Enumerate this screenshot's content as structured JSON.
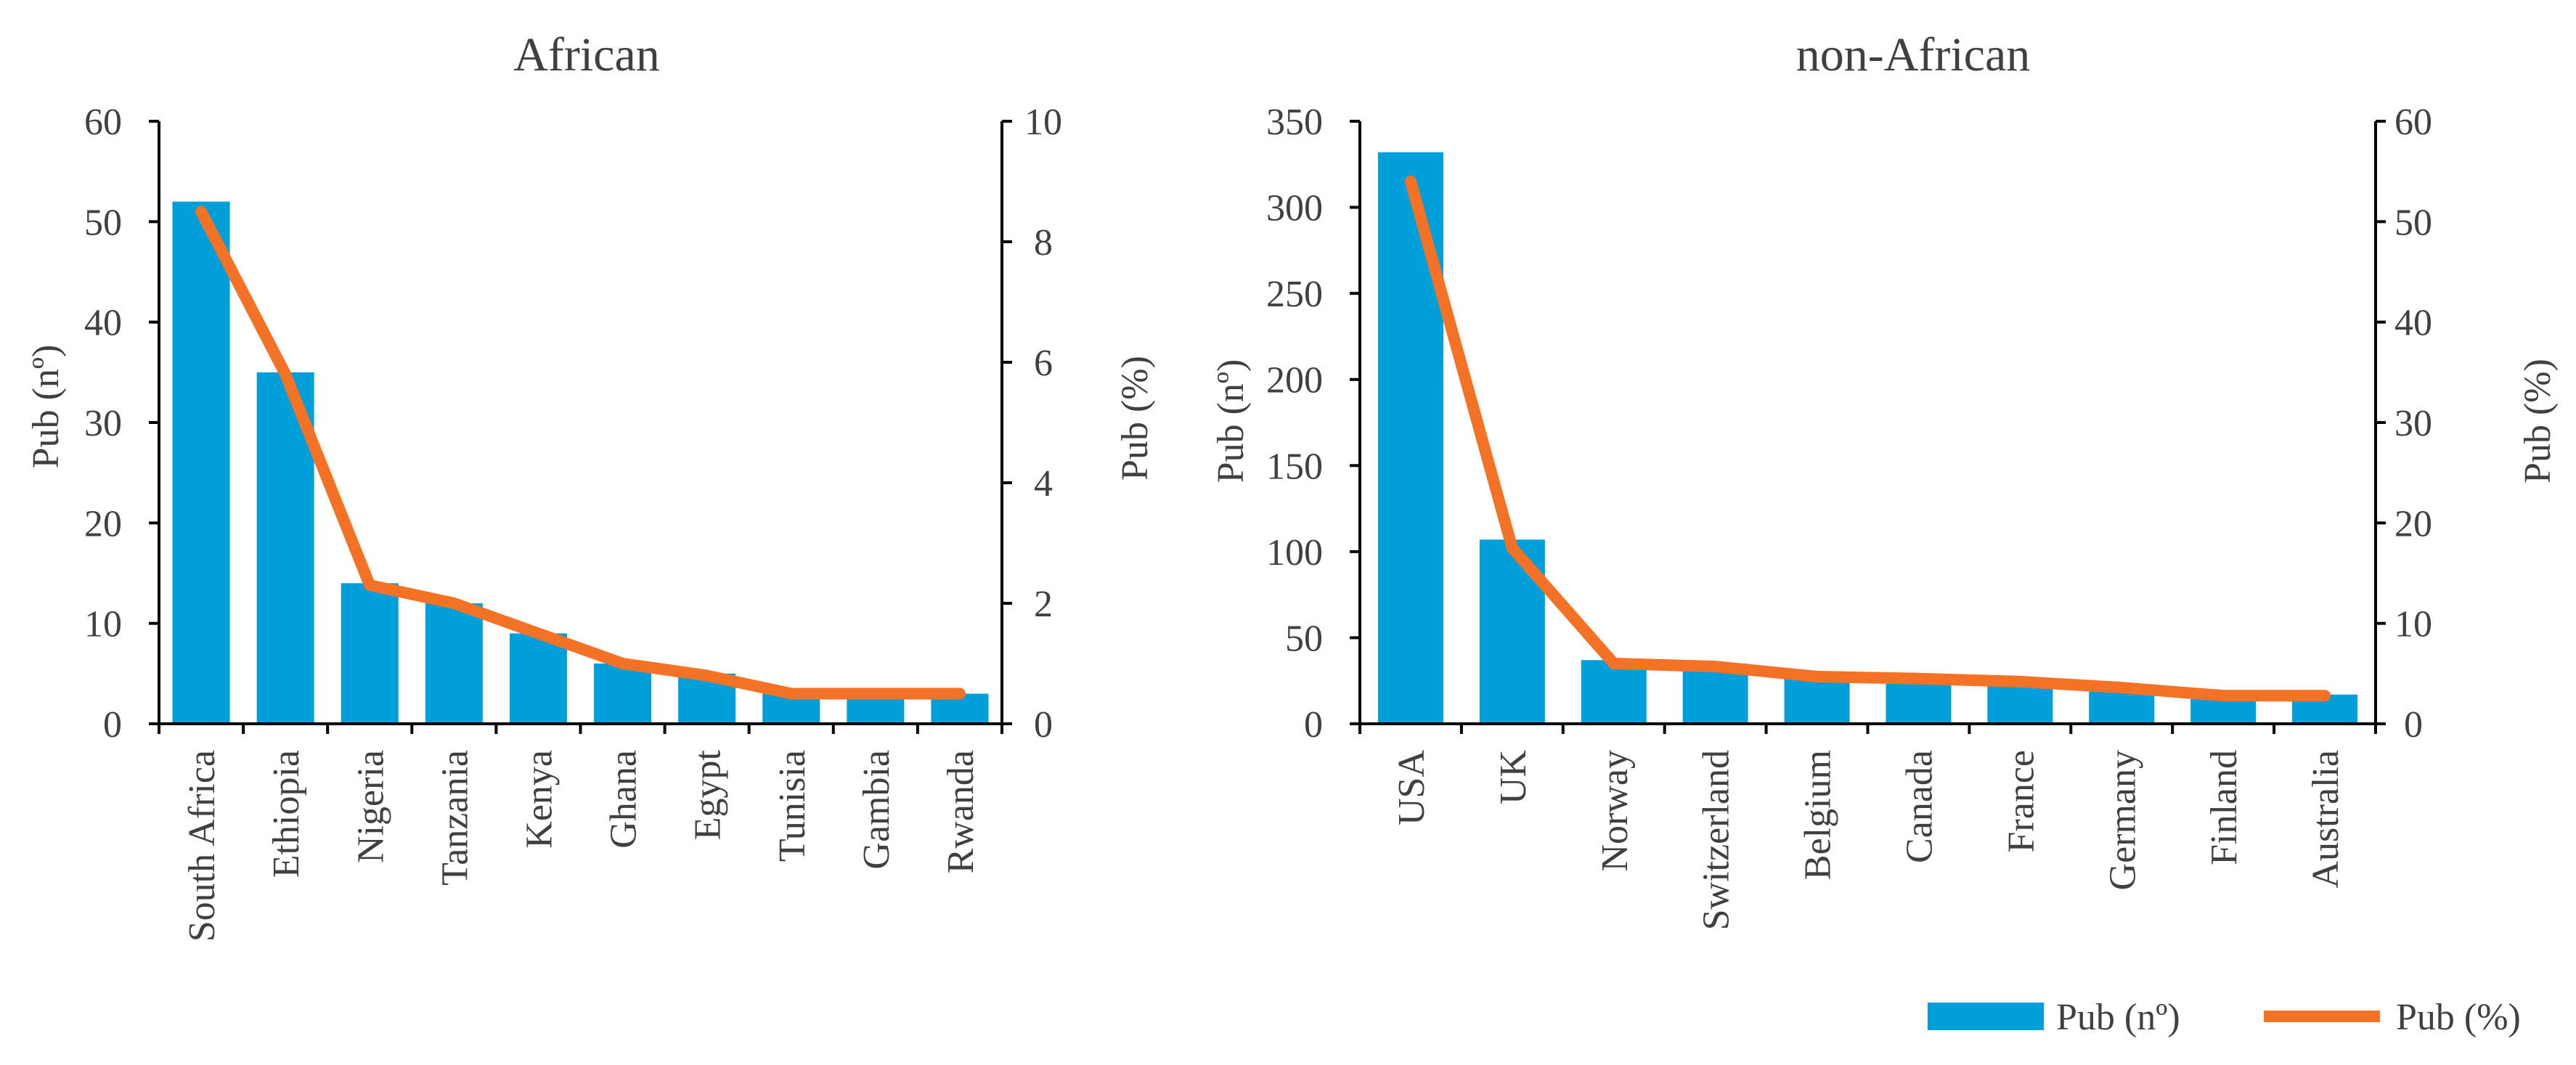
{
  "chart_data": [
    {
      "type": "bar+line",
      "title": "African",
      "categories": [
        "South Africa",
        "Ethiopia",
        "Nigeria",
        "Tanzania",
        "Kenya",
        "Ghana",
        "Egypt",
        "Tunisia",
        "Gambia",
        "Rwanda"
      ],
      "series": [
        {
          "name": "Pub (nº)",
          "type": "bar",
          "axis": "left",
          "values": [
            52,
            35,
            14,
            12,
            9,
            6,
            5,
            3,
            3,
            3
          ]
        },
        {
          "name": "Pub (%)",
          "type": "line",
          "axis": "right",
          "values": [
            8.5,
            5.8,
            2.3,
            2.0,
            1.5,
            1.0,
            0.8,
            0.5,
            0.5,
            0.5
          ]
        }
      ],
      "ylabel": "Pub (nº)",
      "ylim": [
        0,
        60
      ],
      "yticks": [
        "0",
        "10",
        "20",
        "30",
        "40",
        "50",
        "60"
      ],
      "y2label": "Pub (%)",
      "y2lim": [
        0,
        10
      ],
      "y2ticks": [
        "0",
        "2",
        "4",
        "6",
        "8",
        "10"
      ]
    },
    {
      "type": "bar+line",
      "title": "non-African",
      "categories": [
        "USA",
        "UK",
        "Norway",
        "Switzerland",
        "Belgium",
        "Canada",
        "France",
        "Germany",
        "Finland",
        "Australia"
      ],
      "series": [
        {
          "name": "Pub (nº)",
          "type": "bar",
          "axis": "left",
          "values": [
            332,
            107,
            37,
            35,
            29,
            28,
            26,
            22,
            17,
            17
          ]
        },
        {
          "name": "Pub (%)",
          "type": "line",
          "axis": "right",
          "values": [
            54,
            17.5,
            6,
            5.7,
            4.7,
            4.5,
            4.2,
            3.6,
            2.8,
            2.8
          ]
        }
      ],
      "ylabel": "Pub (nº)",
      "ylim": [
        0,
        350
      ],
      "yticks": [
        "0",
        "50",
        "100",
        "150",
        "200",
        "250",
        "300",
        "350"
      ],
      "y2label": "Pub (%)",
      "y2lim": [
        0,
        60
      ],
      "y2ticks": [
        "0",
        "10",
        "20",
        "30",
        "40",
        "50",
        "60"
      ]
    }
  ],
  "legend": {
    "bar_label": "Pub (nº)",
    "line_label": "Pub (%)"
  },
  "colors": {
    "bar": "#009FD9",
    "line": "#F37226",
    "axis": "#000000",
    "text": "#404040"
  }
}
